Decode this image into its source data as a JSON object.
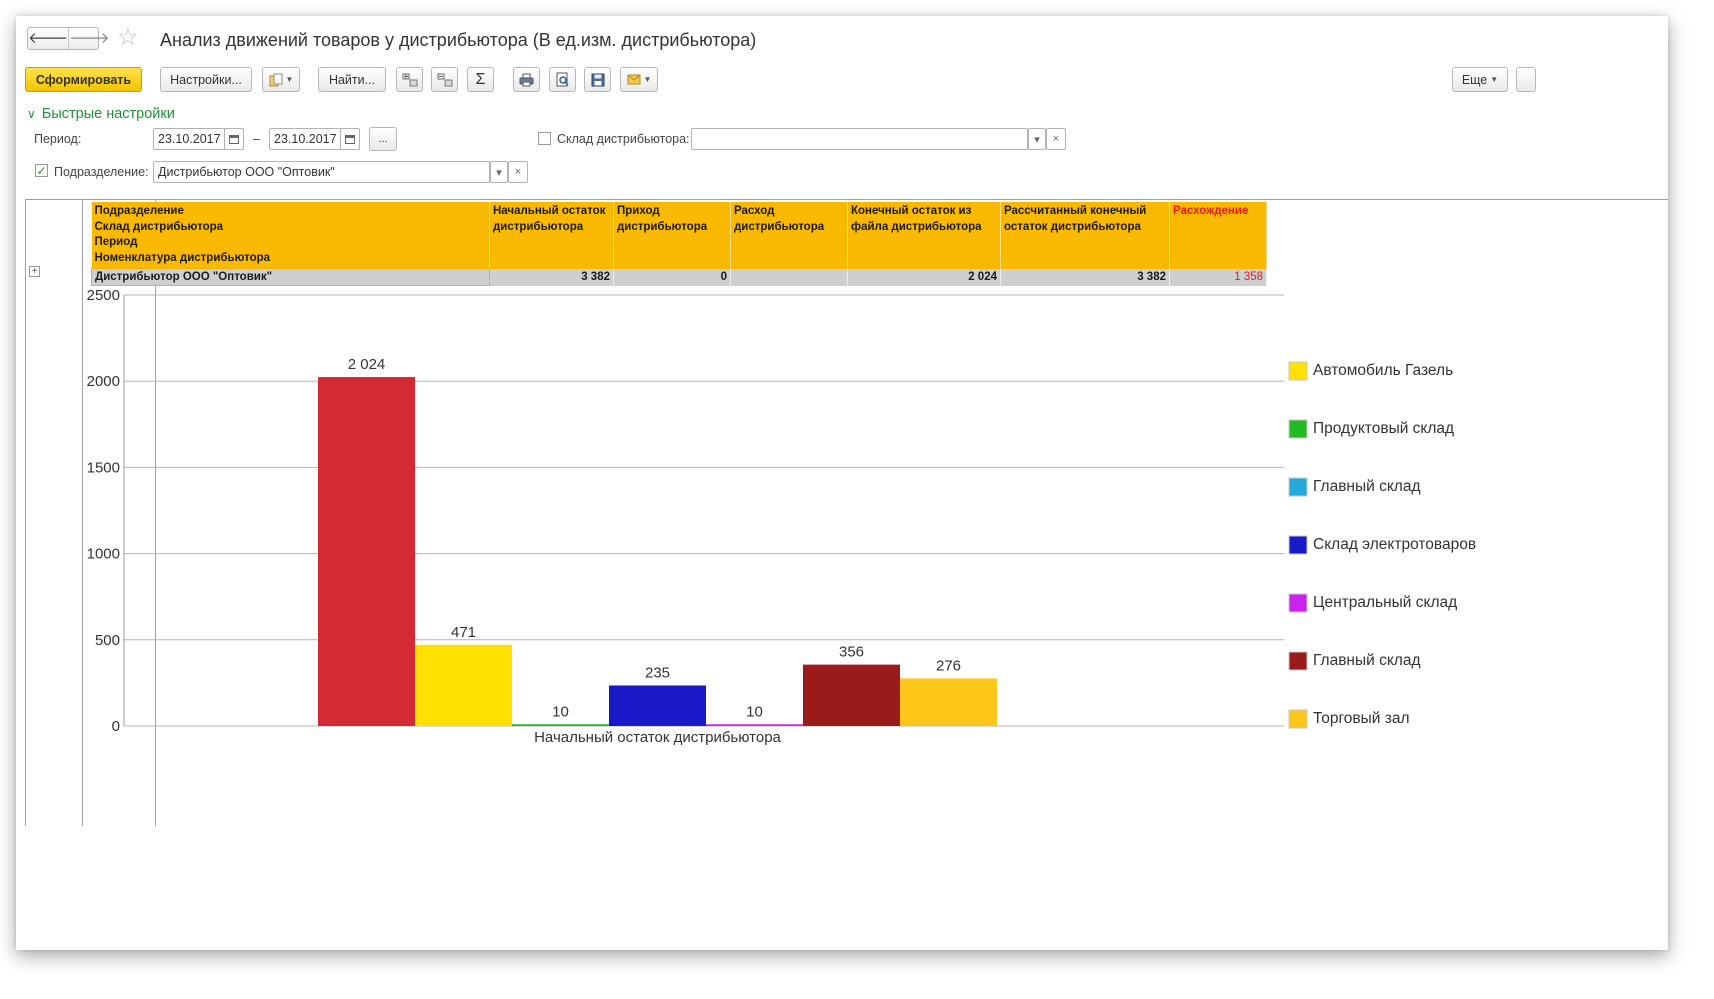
{
  "window": {
    "title": "Анализ движений товаров у дистрибьютора (В ед.изм. дистрибьютора)"
  },
  "nav": {
    "back": "🡐",
    "forward": "🡒",
    "favorite": "☆"
  },
  "toolbar": {
    "generate_label": "Сформировать",
    "settings_label": "Настройки...",
    "find_label": "Найти...",
    "sum_symbol": "Σ",
    "more_label": "Еще"
  },
  "quick_settings": {
    "header": "Быстрые настройки",
    "period_label": "Период:",
    "period_from": "23.10.2017",
    "period_dash": "–",
    "period_to": "23.10.2017",
    "ellipsis_label": "...",
    "warehouse_label": "Склад дистрибьютора:",
    "warehouse_value": "",
    "warehouse_checked": false,
    "division_label": "Подразделение:",
    "division_value": "Дистрибьютор ООО \"Оптовик\"",
    "division_checked": true,
    "clear_symbol": "×",
    "dropdown_symbol": "▾"
  },
  "report_table": {
    "headers": [
      "Подразделение\nСклад дистрибьютора\nПериод\nНоменклатура дистрибьютора",
      "Начальный остаток дистрибьютора",
      "Приход дистрибьютора",
      "Расход дистрибьютора",
      "Конечный остаток из файла дистрибьютора",
      "Рассчитанный конечный остаток дистрибьютора",
      "Расхождение"
    ],
    "rows": [
      [
        "Дистрибьютор ООО \"Оптовик\"",
        "3 382",
        "0",
        "",
        "2 024",
        "3 382",
        "1 358"
      ]
    ],
    "accent_color": "#f9b900",
    "discrepancy_color": "#e81a1a"
  },
  "chart_data": {
    "type": "bar",
    "categories": [
      "Начальный остаток дистрибьютора"
    ],
    "ylim": [
      0,
      2500
    ],
    "yticks": [
      0,
      500,
      1000,
      1500,
      2000,
      2500
    ],
    "grid": true,
    "legend_position": "right",
    "bars": [
      {
        "value": 2024,
        "label": "2 024",
        "color": "#d42a36"
      },
      {
        "value": 471,
        "label": "471",
        "color": "#ffe000"
      },
      {
        "value": 10,
        "label": "10",
        "color": "#22bb22"
      },
      {
        "value": 235,
        "label": "235",
        "color": "#1a1ac8"
      },
      {
        "value": 10,
        "label": "10",
        "color": "#cc22ee"
      },
      {
        "value": 356,
        "label": "356",
        "color": "#9b1b1b"
      },
      {
        "value": 276,
        "label": "276",
        "color": "#ffc61a"
      }
    ],
    "legend": [
      {
        "name": "Автомобиль Газель",
        "color": "#ffe000"
      },
      {
        "name": "Продуктовый склад",
        "color": "#22bb22"
      },
      {
        "name": "Главный склад",
        "color": "#22aadd"
      },
      {
        "name": "Склад электротоваров",
        "color": "#1a1ac8"
      },
      {
        "name": "Центральный склад",
        "color": "#cc22ee"
      },
      {
        "name": "Главный склад",
        "color": "#9b1b1b"
      },
      {
        "name": "Торговый зал",
        "color": "#ffc61a"
      }
    ]
  }
}
